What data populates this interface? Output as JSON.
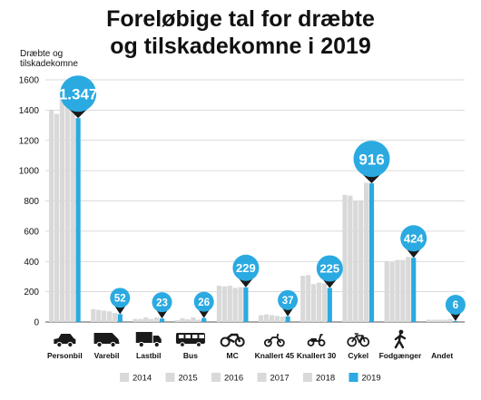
{
  "chart_data": {
    "type": "bar",
    "title": [
      "Foreløbige tal for dræbte",
      "og tilskadekomne i 2019"
    ],
    "ylabel": [
      "Dræbte og",
      "tilskadekomne"
    ],
    "ylim": [
      0,
      1600
    ],
    "yticks": [
      0,
      200,
      400,
      600,
      800,
      1000,
      1200,
      1400,
      1600
    ],
    "grid": true,
    "legend_position": "bottom",
    "categories": [
      "Personbil",
      "Varebil",
      "Lastbil",
      "Bus",
      "MC",
      "Knallert 45",
      "Knallert 30",
      "Cykel",
      "Fodgænger",
      "Andet"
    ],
    "icons": [
      "car-icon",
      "van-icon",
      "truck-icon",
      "bus-icon",
      "motorcycle-icon",
      "moped-icon",
      "scooter-icon",
      "bicycle-icon",
      "pedestrian-icon",
      ""
    ],
    "series": [
      {
        "name": "2014",
        "color": "#d9d9d9",
        "values": [
          1400,
          85,
          20,
          12,
          240,
          45,
          305,
          840,
          400,
          15
        ]
      },
      {
        "name": "2015",
        "color": "#d9d9d9",
        "values": [
          1375,
          80,
          20,
          25,
          235,
          50,
          310,
          835,
          395,
          15
        ]
      },
      {
        "name": "2016",
        "color": "#d9d9d9",
        "values": [
          1530,
          75,
          30,
          18,
          240,
          45,
          250,
          800,
          410,
          15
        ]
      },
      {
        "name": "2017",
        "color": "#d9d9d9",
        "values": [
          1465,
          70,
          20,
          30,
          225,
          40,
          260,
          800,
          410,
          15
        ]
      },
      {
        "name": "2018",
        "color": "#d9d9d9",
        "values": [
          1470,
          60,
          30,
          15,
          230,
          35,
          255,
          920,
          430,
          20
        ]
      },
      {
        "name": "2019",
        "color": "#2aaae1",
        "values": [
          1347,
          52,
          23,
          26,
          229,
          37,
          225,
          916,
          424,
          6
        ]
      }
    ],
    "data_labels": [
      "1.347",
      "52",
      "23",
      "26",
      "229",
      "37",
      "225",
      "916",
      "424",
      "6"
    ],
    "bubble_sizes": [
      "large",
      "small",
      "small",
      "small",
      "medium",
      "small",
      "medium",
      "large",
      "medium",
      "small"
    ]
  },
  "colors": {
    "highlight": "#2aaae1",
    "previous_years": "#d9d9d9",
    "grid": "#cfcfcf",
    "text": "#111111",
    "bubble_text": "#ffffff"
  }
}
